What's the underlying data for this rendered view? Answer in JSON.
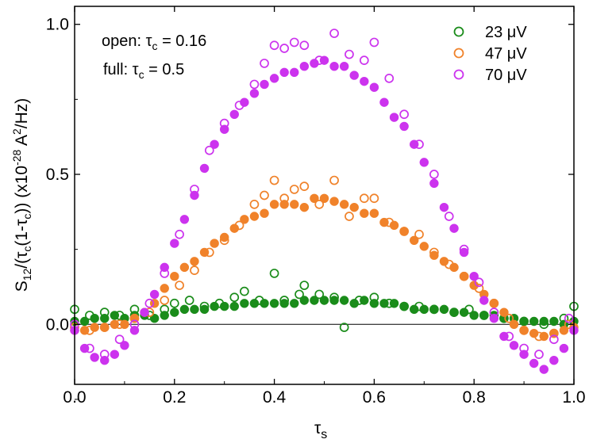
{
  "chart_data": {
    "type": "scatter",
    "title": "",
    "xlabel": "τs",
    "ylabel": "S12/(τc(1-τc)) (x10-28 A2/Hz)",
    "xlim": [
      0.0,
      1.0
    ],
    "ylim": [
      -0.2,
      1.06
    ],
    "x_ticks": [
      "0.0",
      "0.2",
      "0.4",
      "0.6",
      "0.8",
      "1.0"
    ],
    "y_ticks": [
      "0.0",
      "0.5",
      "1.0"
    ],
    "grid": false,
    "legend_position": "top-right",
    "legend": [
      "23 μV",
      "47 μV",
      "70 μV"
    ],
    "annotations": [
      "open: τc = 0.16",
      "full:  τc = 0.5"
    ],
    "marker_styles": {
      "open": "open: τc = 0.16",
      "filled": "full: τc = 0.5"
    },
    "series": [
      {
        "name": "23 μV",
        "color": "#1a8c1a",
        "open_points": [
          [
            0.0,
            0.05
          ],
          [
            0.03,
            0.03
          ],
          [
            0.06,
            0.04
          ],
          [
            0.09,
            0.03
          ],
          [
            0.12,
            0.05
          ],
          [
            0.15,
            0.03
          ],
          [
            0.18,
            0.05
          ],
          [
            0.2,
            0.07
          ],
          [
            0.23,
            0.08
          ],
          [
            0.26,
            0.06
          ],
          [
            0.29,
            0.07
          ],
          [
            0.32,
            0.09
          ],
          [
            0.34,
            0.11
          ],
          [
            0.37,
            0.08
          ],
          [
            0.4,
            0.17
          ],
          [
            0.42,
            0.08
          ],
          [
            0.45,
            0.1
          ],
          [
            0.46,
            0.13
          ],
          [
            0.49,
            0.1
          ],
          [
            0.52,
            0.09
          ],
          [
            0.54,
            -0.01
          ],
          [
            0.57,
            0.08
          ],
          [
            0.6,
            0.09
          ],
          [
            0.63,
            0.07
          ],
          [
            0.66,
            0.06
          ],
          [
            0.69,
            0.06
          ],
          [
            0.72,
            0.05
          ],
          [
            0.76,
            0.04
          ],
          [
            0.79,
            0.05
          ],
          [
            0.82,
            0.03
          ],
          [
            0.86,
            0.02
          ],
          [
            0.9,
            0.01
          ],
          [
            0.94,
            0.0
          ],
          [
            0.98,
            0.02
          ],
          [
            1.0,
            0.06
          ]
        ],
        "filled_points": [
          [
            0.0,
            0.01
          ],
          [
            0.02,
            0.01
          ],
          [
            0.04,
            0.02
          ],
          [
            0.06,
            0.02
          ],
          [
            0.08,
            0.03
          ],
          [
            0.1,
            0.02
          ],
          [
            0.12,
            0.03
          ],
          [
            0.14,
            0.03
          ],
          [
            0.16,
            0.02
          ],
          [
            0.18,
            0.03
          ],
          [
            0.2,
            0.04
          ],
          [
            0.22,
            0.05
          ],
          [
            0.24,
            0.05
          ],
          [
            0.26,
            0.05
          ],
          [
            0.28,
            0.06
          ],
          [
            0.3,
            0.06
          ],
          [
            0.32,
            0.06
          ],
          [
            0.34,
            0.07
          ],
          [
            0.36,
            0.07
          ],
          [
            0.38,
            0.07
          ],
          [
            0.4,
            0.07
          ],
          [
            0.42,
            0.07
          ],
          [
            0.44,
            0.07
          ],
          [
            0.46,
            0.08
          ],
          [
            0.48,
            0.08
          ],
          [
            0.5,
            0.08
          ],
          [
            0.52,
            0.08
          ],
          [
            0.54,
            0.08
          ],
          [
            0.56,
            0.07
          ],
          [
            0.58,
            0.08
          ],
          [
            0.6,
            0.07
          ],
          [
            0.62,
            0.07
          ],
          [
            0.64,
            0.07
          ],
          [
            0.66,
            0.06
          ],
          [
            0.68,
            0.05
          ],
          [
            0.7,
            0.05
          ],
          [
            0.72,
            0.05
          ],
          [
            0.74,
            0.05
          ],
          [
            0.76,
            0.04
          ],
          [
            0.78,
            0.04
          ],
          [
            0.8,
            0.03
          ],
          [
            0.82,
            0.03
          ],
          [
            0.84,
            0.03
          ],
          [
            0.86,
            0.02
          ],
          [
            0.88,
            0.02
          ],
          [
            0.9,
            0.01
          ],
          [
            0.92,
            0.01
          ],
          [
            0.94,
            0.01
          ],
          [
            0.96,
            0.01
          ],
          [
            0.98,
            0.0
          ],
          [
            1.0,
            0.01
          ]
        ]
      },
      {
        "name": "47 μV",
        "color": "#f0822a",
        "open_points": [
          [
            0.0,
            -0.01
          ],
          [
            0.03,
            -0.02
          ],
          [
            0.06,
            -0.01
          ],
          [
            0.09,
            0.0
          ],
          [
            0.12,
            0.02
          ],
          [
            0.15,
            0.04
          ],
          [
            0.18,
            0.08
          ],
          [
            0.21,
            0.13
          ],
          [
            0.24,
            0.18
          ],
          [
            0.27,
            0.24
          ],
          [
            0.3,
            0.28
          ],
          [
            0.33,
            0.33
          ],
          [
            0.36,
            0.4
          ],
          [
            0.38,
            0.43
          ],
          [
            0.4,
            0.48
          ],
          [
            0.42,
            0.42
          ],
          [
            0.44,
            0.45
          ],
          [
            0.46,
            0.46
          ],
          [
            0.49,
            0.4
          ],
          [
            0.52,
            0.48
          ],
          [
            0.55,
            0.36
          ],
          [
            0.58,
            0.42
          ],
          [
            0.6,
            0.42
          ],
          [
            0.63,
            0.34
          ],
          [
            0.66,
            0.31
          ],
          [
            0.69,
            0.3
          ],
          [
            0.72,
            0.24
          ],
          [
            0.75,
            0.2
          ],
          [
            0.78,
            0.16
          ],
          [
            0.81,
            0.12
          ],
          [
            0.84,
            0.07
          ],
          [
            0.87,
            0.02
          ],
          [
            0.9,
            -0.02
          ],
          [
            0.93,
            -0.04
          ],
          [
            0.96,
            -0.03
          ],
          [
            0.99,
            0.0
          ]
        ],
        "filled_points": [
          [
            0.0,
            -0.02
          ],
          [
            0.02,
            -0.02
          ],
          [
            0.04,
            -0.01
          ],
          [
            0.06,
            -0.01
          ],
          [
            0.08,
            0.0
          ],
          [
            0.1,
            0.0
          ],
          [
            0.12,
            0.02
          ],
          [
            0.14,
            0.04
          ],
          [
            0.16,
            0.07
          ],
          [
            0.18,
            0.12
          ],
          [
            0.2,
            0.16
          ],
          [
            0.22,
            0.19
          ],
          [
            0.24,
            0.21
          ],
          [
            0.26,
            0.24
          ],
          [
            0.28,
            0.27
          ],
          [
            0.3,
            0.29
          ],
          [
            0.32,
            0.32
          ],
          [
            0.34,
            0.35
          ],
          [
            0.36,
            0.36
          ],
          [
            0.38,
            0.37
          ],
          [
            0.4,
            0.4
          ],
          [
            0.42,
            0.4
          ],
          [
            0.44,
            0.4
          ],
          [
            0.46,
            0.39
          ],
          [
            0.48,
            0.42
          ],
          [
            0.5,
            0.42
          ],
          [
            0.52,
            0.41
          ],
          [
            0.54,
            0.4
          ],
          [
            0.56,
            0.39
          ],
          [
            0.58,
            0.37
          ],
          [
            0.6,
            0.37
          ],
          [
            0.62,
            0.34
          ],
          [
            0.64,
            0.33
          ],
          [
            0.66,
            0.31
          ],
          [
            0.68,
            0.28
          ],
          [
            0.7,
            0.26
          ],
          [
            0.72,
            0.23
          ],
          [
            0.74,
            0.21
          ],
          [
            0.76,
            0.19
          ],
          [
            0.78,
            0.16
          ],
          [
            0.8,
            0.13
          ],
          [
            0.82,
            0.1
          ],
          [
            0.84,
            0.07
          ],
          [
            0.86,
            0.04
          ],
          [
            0.88,
            0.0
          ],
          [
            0.9,
            -0.02
          ],
          [
            0.92,
            -0.03
          ],
          [
            0.94,
            -0.04
          ],
          [
            0.96,
            -0.03
          ],
          [
            0.98,
            -0.02
          ],
          [
            1.0,
            -0.01
          ]
        ]
      },
      {
        "name": "70 μV",
        "color": "#cc33ee",
        "open_points": [
          [
            0.0,
            0.0
          ],
          [
            0.03,
            -0.08
          ],
          [
            0.06,
            -0.1
          ],
          [
            0.09,
            -0.05
          ],
          [
            0.12,
            0.0
          ],
          [
            0.15,
            0.07
          ],
          [
            0.18,
            0.17
          ],
          [
            0.21,
            0.3
          ],
          [
            0.24,
            0.45
          ],
          [
            0.27,
            0.58
          ],
          [
            0.3,
            0.67
          ],
          [
            0.33,
            0.73
          ],
          [
            0.36,
            0.8
          ],
          [
            0.38,
            0.87
          ],
          [
            0.4,
            0.93
          ],
          [
            0.42,
            0.92
          ],
          [
            0.44,
            0.94
          ],
          [
            0.46,
            0.93
          ],
          [
            0.49,
            0.88
          ],
          [
            0.52,
            0.97
          ],
          [
            0.55,
            0.9
          ],
          [
            0.58,
            0.88
          ],
          [
            0.6,
            0.94
          ],
          [
            0.63,
            0.82
          ],
          [
            0.66,
            0.7
          ],
          [
            0.69,
            0.6
          ],
          [
            0.72,
            0.5
          ],
          [
            0.75,
            0.36
          ],
          [
            0.78,
            0.25
          ],
          [
            0.81,
            0.14
          ],
          [
            0.84,
            0.04
          ],
          [
            0.87,
            -0.04
          ],
          [
            0.9,
            -0.08
          ],
          [
            0.93,
            -0.1
          ],
          [
            0.96,
            -0.05
          ],
          [
            0.99,
            0.02
          ]
        ],
        "filled_points": [
          [
            0.0,
            -0.02
          ],
          [
            0.02,
            -0.08
          ],
          [
            0.04,
            -0.11
          ],
          [
            0.06,
            -0.12
          ],
          [
            0.08,
            -0.1
          ],
          [
            0.1,
            -0.07
          ],
          [
            0.12,
            -0.02
          ],
          [
            0.14,
            0.04
          ],
          [
            0.16,
            0.1
          ],
          [
            0.18,
            0.19
          ],
          [
            0.2,
            0.27
          ],
          [
            0.22,
            0.35
          ],
          [
            0.24,
            0.43
          ],
          [
            0.26,
            0.52
          ],
          [
            0.28,
            0.6
          ],
          [
            0.3,
            0.65
          ],
          [
            0.32,
            0.7
          ],
          [
            0.34,
            0.74
          ],
          [
            0.36,
            0.77
          ],
          [
            0.38,
            0.8
          ],
          [
            0.4,
            0.82
          ],
          [
            0.42,
            0.84
          ],
          [
            0.44,
            0.84
          ],
          [
            0.46,
            0.86
          ],
          [
            0.48,
            0.87
          ],
          [
            0.5,
            0.88
          ],
          [
            0.52,
            0.86
          ],
          [
            0.54,
            0.86
          ],
          [
            0.56,
            0.83
          ],
          [
            0.58,
            0.81
          ],
          [
            0.6,
            0.79
          ],
          [
            0.62,
            0.74
          ],
          [
            0.64,
            0.69
          ],
          [
            0.66,
            0.66
          ],
          [
            0.68,
            0.6
          ],
          [
            0.7,
            0.54
          ],
          [
            0.72,
            0.47
          ],
          [
            0.74,
            0.39
          ],
          [
            0.76,
            0.32
          ],
          [
            0.78,
            0.24
          ],
          [
            0.8,
            0.16
          ],
          [
            0.82,
            0.08
          ],
          [
            0.84,
            0.02
          ],
          [
            0.86,
            -0.04
          ],
          [
            0.88,
            -0.07
          ],
          [
            0.9,
            -0.1
          ],
          [
            0.92,
            -0.13
          ],
          [
            0.94,
            -0.15
          ],
          [
            0.96,
            -0.12
          ],
          [
            0.98,
            -0.08
          ],
          [
            1.0,
            -0.02
          ]
        ]
      }
    ]
  }
}
